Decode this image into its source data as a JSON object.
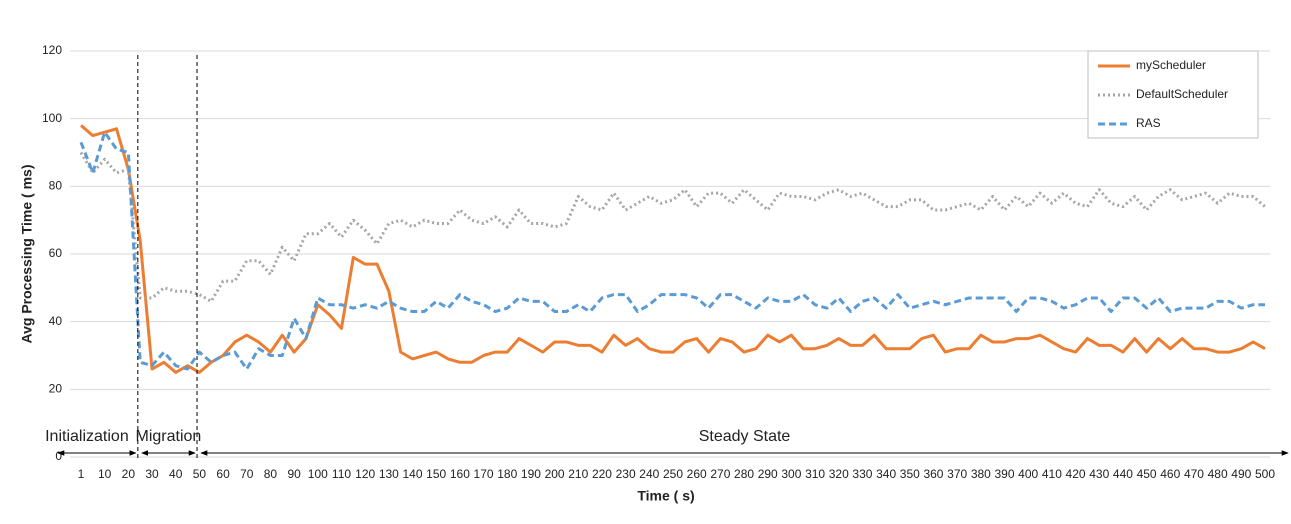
{
  "chart_data": {
    "type": "line",
    "xlabel": "Time ( s)",
    "ylabel": "Avg Processing Time ( ms)",
    "categories": [
      1,
      null,
      10,
      null,
      20,
      null,
      30,
      null,
      40,
      null,
      50,
      null,
      60,
      null,
      70,
      null,
      80,
      null,
      90,
      null,
      100,
      null,
      110,
      null,
      120,
      null,
      130,
      null,
      140,
      null,
      150,
      null,
      160,
      null,
      170,
      null,
      180,
      null,
      190,
      null,
      200,
      null,
      210,
      null,
      220,
      null,
      230,
      null,
      240,
      null,
      250,
      null,
      260,
      null,
      270,
      null,
      280,
      null,
      290,
      null,
      300,
      null,
      310,
      null,
      320,
      null,
      330,
      null,
      340,
      null,
      350,
      null,
      360,
      null,
      370,
      null,
      380,
      null,
      390,
      null,
      400,
      null,
      410,
      null,
      420,
      null,
      430,
      null,
      440,
      null,
      450,
      null,
      460,
      null,
      470,
      null,
      480,
      null,
      490,
      null,
      500
    ],
    "series": [
      {
        "name": "myScheduler",
        "color": "#ed7d31",
        "dash": "solid",
        "values": [
          98,
          95,
          96,
          97,
          85,
          64,
          26,
          28,
          25,
          27,
          25,
          28,
          30,
          34,
          36,
          34,
          31,
          36,
          31,
          35,
          45,
          42,
          38,
          59,
          57,
          57,
          49,
          31,
          29,
          30,
          31,
          29,
          28,
          28,
          30,
          31,
          31,
          35,
          33,
          31,
          34,
          34,
          33,
          33,
          31,
          36,
          33,
          35,
          32,
          31,
          31,
          34,
          35,
          31,
          35,
          34,
          31,
          32,
          36,
          34,
          36,
          32,
          32,
          33,
          35,
          33,
          33,
          36,
          32,
          32,
          32,
          35,
          36,
          31,
          32,
          32,
          36,
          34,
          34,
          35,
          35,
          36,
          34,
          32,
          31,
          35,
          33,
          33,
          31,
          35,
          31,
          35,
          32,
          35,
          32,
          32,
          31,
          31,
          32,
          34,
          32
        ]
      },
      {
        "name": "DefaultScheduler",
        "color": "#a5a5a5",
        "dash": "dotted",
        "values": [
          90,
          84,
          88,
          84,
          85,
          47,
          47,
          50,
          49,
          49,
          48,
          46,
          52,
          52,
          58,
          58,
          54,
          62,
          58,
          66,
          66,
          69,
          65,
          70,
          67,
          63,
          69,
          70,
          68,
          70,
          69,
          69,
          73,
          70,
          69,
          71,
          68,
          73,
          69,
          69,
          68,
          69,
          77,
          74,
          73,
          78,
          73,
          75,
          77,
          75,
          76,
          79,
          74,
          78,
          78,
          75,
          79,
          76,
          73,
          78,
          77,
          77,
          76,
          78,
          79,
          77,
          78,
          76,
          74,
          74,
          76,
          76,
          73,
          73,
          74,
          75,
          73,
          77,
          73,
          77,
          74,
          78,
          75,
          78,
          75,
          74,
          79,
          75,
          74,
          77,
          73,
          77,
          79,
          76,
          77,
          78,
          75,
          78,
          77,
          77,
          74
        ]
      },
      {
        "name": "RAS",
        "color": "#5b9bd5",
        "dash": "dashed",
        "values": [
          93,
          84,
          96,
          91,
          90,
          28,
          27,
          31,
          27,
          26,
          31,
          28,
          30,
          31,
          26,
          32,
          30,
          30,
          41,
          35,
          47,
          45,
          45,
          44,
          45,
          44,
          46,
          44,
          43,
          43,
          46,
          44,
          48,
          46,
          45,
          43,
          44,
          47,
          46,
          46,
          43,
          43,
          45,
          43,
          47,
          48,
          48,
          43,
          45,
          48,
          48,
          48,
          47,
          44,
          48,
          48,
          46,
          44,
          47,
          46,
          46,
          48,
          45,
          44,
          47,
          43,
          46,
          47,
          44,
          48,
          44,
          45,
          46,
          45,
          46,
          47,
          47,
          47,
          47,
          43,
          47,
          47,
          46,
          44,
          45,
          47,
          47,
          43,
          47,
          47,
          44,
          47,
          43,
          44,
          44,
          44,
          46,
          46,
          44,
          45,
          45
        ]
      }
    ],
    "ylim": [
      0,
      120
    ],
    "yticks": [
      0,
      20,
      40,
      60,
      80,
      100,
      120
    ],
    "grid": true,
    "legend": "top-right",
    "phases": [
      {
        "label": "Initialization",
        "end": 24
      },
      {
        "label": "Migration",
        "end": 49
      },
      {
        "label": "Steady State"
      }
    ]
  }
}
